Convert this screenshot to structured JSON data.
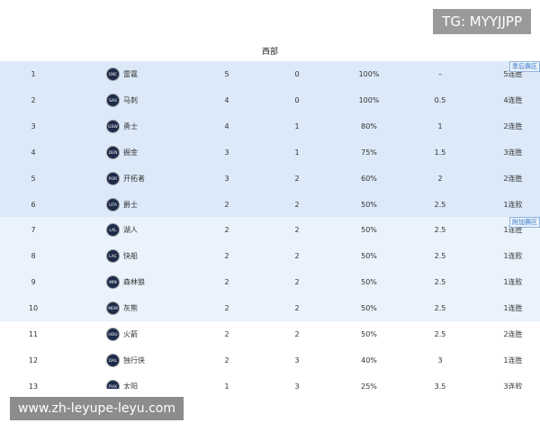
{
  "watermark": "TG: MYYJJPP",
  "footer_url": "www.zh-leyupe-leyu.com",
  "header": {
    "title": "西部"
  },
  "zones": [
    {
      "label": "季后赛区",
      "row": 0
    },
    {
      "label": "附加赛区",
      "row": 6
    }
  ],
  "table": {
    "rows": [
      [
        "1",
        "OKC",
        "雷霆",
        "5",
        "0",
        "100%",
        "–",
        "5连胜"
      ],
      [
        "2",
        "SAS",
        "马刺",
        "4",
        "0",
        "100%",
        "0.5",
        "4连胜"
      ],
      [
        "3",
        "GSW",
        "勇士",
        "4",
        "1",
        "80%",
        "1",
        "2连胜"
      ],
      [
        "4",
        "DEN",
        "掘金",
        "3",
        "1",
        "75%",
        "1.5",
        "3连胜"
      ],
      [
        "5",
        "POR",
        "开拓者",
        "3",
        "2",
        "60%",
        "2",
        "2连胜"
      ],
      [
        "6",
        "UTA",
        "爵士",
        "2",
        "2",
        "50%",
        "2.5",
        "1连败"
      ],
      [
        "7",
        "LAL",
        "湖人",
        "2",
        "2",
        "50%",
        "2.5",
        "1连胜"
      ],
      [
        "8",
        "LAC",
        "快船",
        "2",
        "2",
        "50%",
        "2.5",
        "1连败"
      ],
      [
        "9",
        "MIN",
        "森林狼",
        "2",
        "2",
        "50%",
        "2.5",
        "1连败"
      ],
      [
        "10",
        "MEM",
        "灰熊",
        "2",
        "2",
        "50%",
        "2.5",
        "1连胜"
      ],
      [
        "11",
        "HOU",
        "火箭",
        "2",
        "2",
        "50%",
        "2.5",
        "2连胜"
      ],
      [
        "12",
        "DAL",
        "独行侠",
        "2",
        "3",
        "40%",
        "3",
        "1连胜"
      ],
      [
        "13",
        "PHX",
        "太阳",
        "1",
        "3",
        "25%",
        "3.5",
        "3连败"
      ]
    ]
  }
}
